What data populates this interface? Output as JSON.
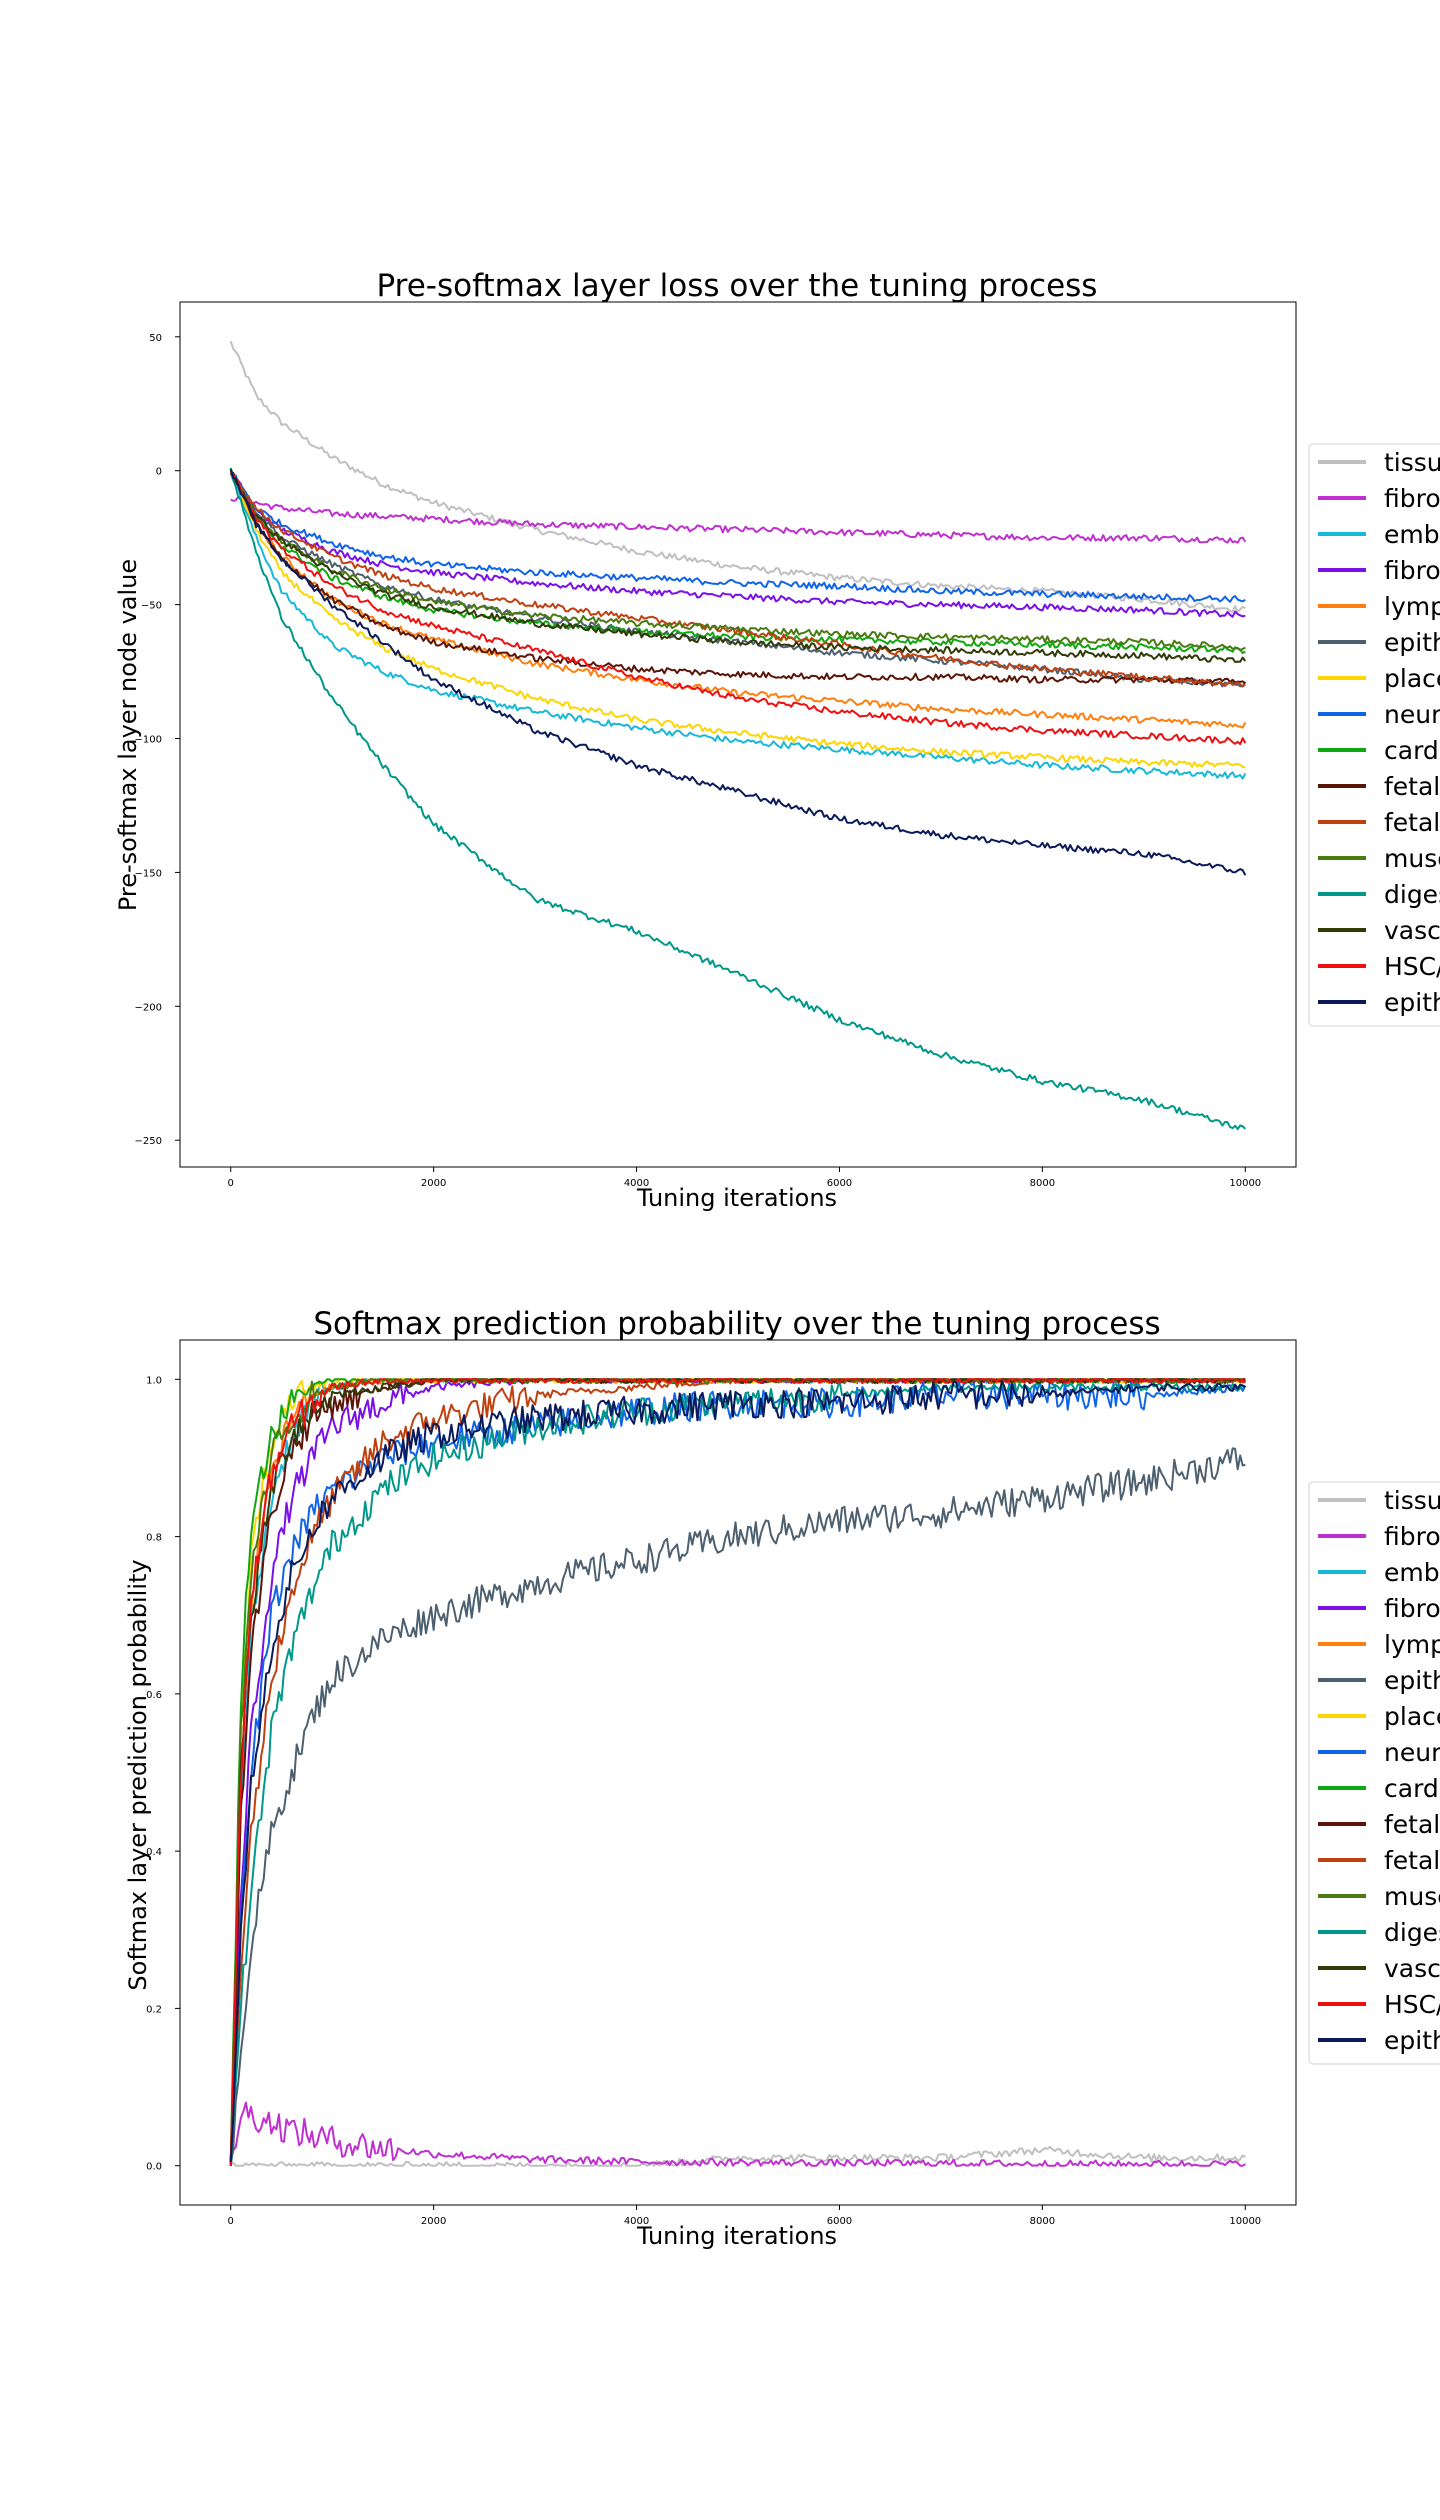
{
  "legend_entries": [
    "tissu",
    "fibro",
    "embr",
    "fibro",
    "lymp",
    "epith",
    "place",
    "neur",
    "cardi",
    "fetal",
    "fetal",
    "musc",
    "diges",
    "vasc",
    "HSC/",
    "epith"
  ],
  "colors": [
    "#c0c0c0",
    "#c030d0",
    "#18b8d8",
    "#7a10e8",
    "#ff7f0e",
    "#4d6070",
    "#ffd500",
    "#1064e8",
    "#10a810",
    "#5a1408",
    "#c04010",
    "#4a7a10",
    "#00988a",
    "#323a08",
    "#ee1010",
    "#0a1a5a"
  ],
  "chart_data": [
    {
      "type": "line",
      "title": "Pre-softmax layer loss over the tuning process",
      "xlabel": "Tuning iterations",
      "ylabel": "Pre-softmax layer node value",
      "xlim": [
        -500,
        10500
      ],
      "ylim": [
        -260,
        63
      ],
      "xticks": [
        0,
        2000,
        4000,
        6000,
        8000,
        10000
      ],
      "yticks": [
        50,
        0,
        -50,
        -100,
        -150,
        -200,
        -250
      ],
      "legend_position": "right, outside plot area",
      "grid": false,
      "x": [
        0,
        250,
        500,
        1000,
        1500,
        2000,
        3000,
        4000,
        5000,
        6000,
        7000,
        8000,
        9000,
        10000
      ],
      "series": [
        {
          "legend_index": 0,
          "values": [
            48,
            28,
            18,
            5,
            -5,
            -12,
            -22,
            -30,
            -36,
            -40,
            -43,
            -45,
            -48,
            -52
          ]
        },
        {
          "legend_index": 1,
          "values": [
            -10,
            -12,
            -14,
            -16,
            -17,
            -18,
            -20,
            -21,
            -22,
            -23,
            -24,
            -25,
            -25,
            -26
          ]
        },
        {
          "legend_index": 2,
          "values": [
            0,
            -25,
            -45,
            -65,
            -75,
            -82,
            -90,
            -96,
            -101,
            -104,
            -107,
            -110,
            -112,
            -114
          ]
        },
        {
          "legend_index": 3,
          "values": [
            0,
            -15,
            -22,
            -30,
            -35,
            -38,
            -42,
            -45,
            -47,
            -49,
            -50,
            -51,
            -52,
            -54
          ]
        },
        {
          "legend_index": 4,
          "values": [
            0,
            -20,
            -32,
            -48,
            -57,
            -63,
            -72,
            -78,
            -83,
            -86,
            -89,
            -91,
            -93,
            -95
          ]
        },
        {
          "legend_index": 5,
          "values": [
            0,
            -15,
            -25,
            -35,
            -43,
            -48,
            -55,
            -60,
            -64,
            -68,
            -71,
            -74,
            -78,
            -80
          ]
        },
        {
          "legend_index": 6,
          "values": [
            0,
            -22,
            -38,
            -55,
            -66,
            -74,
            -85,
            -93,
            -98,
            -102,
            -105,
            -107,
            -109,
            -110
          ]
        },
        {
          "legend_index": 7,
          "values": [
            0,
            -14,
            -20,
            -27,
            -32,
            -35,
            -38,
            -40,
            -42,
            -43,
            -45,
            -46,
            -47,
            -48
          ]
        },
        {
          "legend_index": 8,
          "values": [
            0,
            -18,
            -28,
            -40,
            -47,
            -52,
            -57,
            -60,
            -62,
            -63,
            -64,
            -65,
            -66,
            -67
          ]
        },
        {
          "legend_index": 9,
          "values": [
            0,
            -20,
            -33,
            -48,
            -58,
            -64,
            -70,
            -74,
            -76,
            -77,
            -77,
            -78,
            -78,
            -79
          ]
        },
        {
          "legend_index": 10,
          "values": [
            0,
            -14,
            -22,
            -32,
            -39,
            -44,
            -50,
            -55,
            -60,
            -65,
            -70,
            -74,
            -77,
            -80
          ]
        },
        {
          "legend_index": 11,
          "values": [
            0,
            -17,
            -26,
            -37,
            -44,
            -49,
            -54,
            -57,
            -59,
            -61,
            -62,
            -63,
            -64,
            -66
          ]
        },
        {
          "legend_index": 12,
          "values": [
            0,
            -30,
            -55,
            -85,
            -110,
            -132,
            -160,
            -172,
            -188,
            -205,
            -218,
            -228,
            -235,
            -246
          ]
        },
        {
          "legend_index": 13,
          "values": [
            0,
            -17,
            -26,
            -38,
            -46,
            -51,
            -57,
            -61,
            -64,
            -66,
            -67,
            -68,
            -69,
            -71
          ]
        },
        {
          "legend_index": 14,
          "values": [
            0,
            -18,
            -29,
            -43,
            -52,
            -58,
            -67,
            -77,
            -85,
            -90,
            -94,
            -97,
            -99,
            -101
          ]
        },
        {
          "legend_index": 15,
          "values": [
            0,
            -20,
            -33,
            -50,
            -64,
            -78,
            -97,
            -110,
            -120,
            -130,
            -136,
            -140,
            -143,
            -150
          ]
        }
      ]
    },
    {
      "type": "line",
      "title": "Softmax prediction probability over the tuning process",
      "xlabel": "Tuning iterations",
      "ylabel": "Softmax layer prediction probability",
      "xlim": [
        -500,
        10500
      ],
      "ylim": [
        -0.05,
        1.05
      ],
      "xticks": [
        0,
        2000,
        4000,
        6000,
        8000,
        10000
      ],
      "yticks": [
        1.0,
        0.8,
        0.6,
        0.4,
        0.2,
        0.0
      ],
      "legend_position": "right, outside plot area",
      "grid": false,
      "x": [
        0,
        100,
        200,
        400,
        600,
        800,
        1000,
        1500,
        2000,
        3000,
        4000,
        5000,
        6000,
        7000,
        8000,
        9000,
        10000
      ],
      "series": [
        {
          "legend_index": 0,
          "values": [
            0,
            0,
            0,
            0,
            0,
            0,
            0,
            0,
            0,
            0,
            0,
            0.01,
            0.01,
            0.01,
            0.02,
            0.01,
            0.01
          ]
        },
        {
          "legend_index": 1,
          "values": [
            0,
            0.07,
            0.065,
            0.055,
            0.045,
            0.038,
            0.032,
            0.022,
            0.015,
            0.008,
            0.005,
            0.004,
            0.003,
            0.003,
            0.002,
            0.002,
            0.002
          ]
        },
        {
          "legend_index": 2,
          "values": [
            0,
            0.45,
            0.68,
            0.85,
            0.93,
            0.97,
            0.99,
            1.0,
            1.0,
            1.0,
            1.0,
            1.0,
            1.0,
            1.0,
            1.0,
            1.0,
            1.0
          ]
        },
        {
          "legend_index": 3,
          "values": [
            0,
            0.35,
            0.55,
            0.75,
            0.85,
            0.9,
            0.94,
            0.97,
            0.99,
            1.0,
            1.0,
            1.0,
            1.0,
            1.0,
            1.0,
            1.0,
            1.0
          ]
        },
        {
          "legend_index": 4,
          "values": [
            0,
            0.5,
            0.72,
            0.88,
            0.95,
            0.98,
            0.99,
            1.0,
            1.0,
            1.0,
            1.0,
            1.0,
            1.0,
            1.0,
            1.0,
            1.0,
            1.0
          ]
        },
        {
          "legend_index": 5,
          "values": [
            0,
            0.15,
            0.28,
            0.42,
            0.5,
            0.57,
            0.62,
            0.67,
            0.7,
            0.74,
            0.77,
            0.8,
            0.82,
            0.83,
            0.85,
            0.87,
            0.9
          ]
        },
        {
          "legend_index": 6,
          "values": [
            0,
            0.55,
            0.78,
            0.92,
            0.97,
            0.99,
            1.0,
            1.0,
            1.0,
            1.0,
            1.0,
            1.0,
            1.0,
            1.0,
            1.0,
            1.0,
            1.0
          ]
        },
        {
          "legend_index": 7,
          "values": [
            0,
            0.3,
            0.5,
            0.7,
            0.78,
            0.83,
            0.86,
            0.9,
            0.92,
            0.94,
            0.96,
            0.97,
            0.97,
            0.98,
            0.98,
            0.98,
            0.99
          ]
        },
        {
          "legend_index": 8,
          "values": [
            0,
            0.6,
            0.82,
            0.93,
            0.97,
            0.99,
            1.0,
            1.0,
            1.0,
            1.0,
            1.0,
            1.0,
            1.0,
            1.0,
            1.0,
            1.0,
            1.0
          ]
        },
        {
          "legend_index": 9,
          "values": [
            0,
            0.45,
            0.65,
            0.83,
            0.91,
            0.95,
            0.97,
            0.99,
            1.0,
            1.0,
            1.0,
            1.0,
            1.0,
            1.0,
            1.0,
            1.0,
            1.0
          ]
        },
        {
          "legend_index": 10,
          "values": [
            0,
            0.25,
            0.42,
            0.62,
            0.73,
            0.8,
            0.85,
            0.92,
            0.95,
            0.98,
            0.99,
            1.0,
            1.0,
            1.0,
            1.0,
            1.0,
            1.0
          ]
        },
        {
          "legend_index": 11,
          "values": [
            0,
            0.55,
            0.75,
            0.9,
            0.95,
            0.98,
            0.99,
            1.0,
            1.0,
            1.0,
            1.0,
            1.0,
            1.0,
            1.0,
            1.0,
            1.0,
            1.0
          ]
        },
        {
          "legend_index": 12,
          "values": [
            0,
            0.2,
            0.35,
            0.55,
            0.66,
            0.73,
            0.79,
            0.86,
            0.9,
            0.94,
            0.96,
            0.97,
            0.98,
            0.99,
            0.99,
            0.99,
            0.99
          ]
        },
        {
          "legend_index": 13,
          "values": [
            0,
            0.5,
            0.7,
            0.86,
            0.93,
            0.96,
            0.98,
            0.99,
            1.0,
            1.0,
            1.0,
            1.0,
            1.0,
            1.0,
            1.0,
            1.0,
            1.0
          ]
        },
        {
          "legend_index": 14,
          "values": [
            0,
            0.5,
            0.72,
            0.88,
            0.94,
            0.97,
            0.99,
            1.0,
            1.0,
            1.0,
            1.0,
            1.0,
            1.0,
            1.0,
            1.0,
            1.0,
            1.0
          ]
        },
        {
          "legend_index": 15,
          "values": [
            0,
            0.3,
            0.48,
            0.66,
            0.75,
            0.81,
            0.85,
            0.9,
            0.93,
            0.95,
            0.96,
            0.97,
            0.97,
            0.98,
            0.98,
            0.99,
            0.99
          ]
        }
      ]
    }
  ]
}
